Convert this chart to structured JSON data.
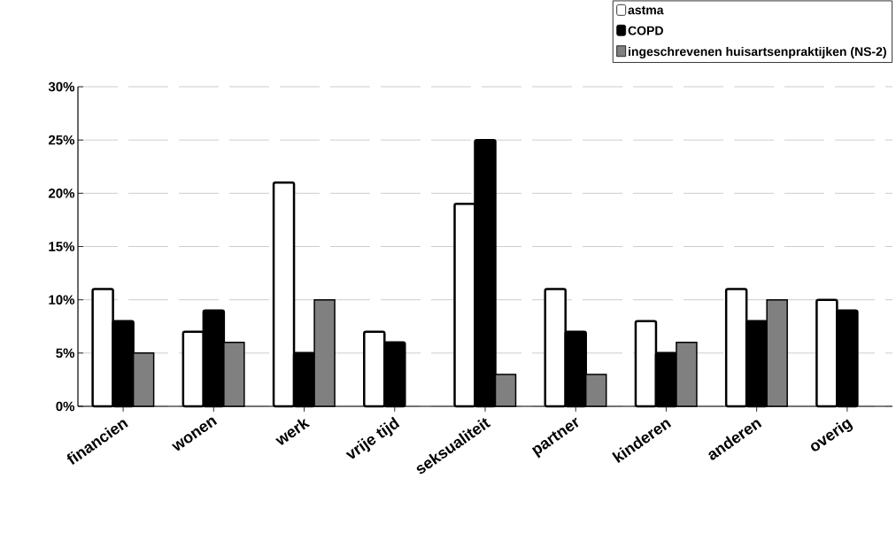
{
  "chart_data": {
    "type": "bar",
    "categories": [
      "financien",
      "wonen",
      "werk",
      "vrije tijd",
      "seksualiteit",
      "partner",
      "kinderen",
      "anderen",
      "overig"
    ],
    "series": [
      {
        "name": "astma",
        "color": "#ffffff",
        "values": [
          11,
          7,
          21,
          7,
          19,
          11,
          8,
          11,
          10
        ]
      },
      {
        "name": "COPD",
        "color": "#000000",
        "values": [
          8,
          9,
          5,
          6,
          25,
          7,
          5,
          8,
          9
        ]
      },
      {
        "name": "ingeschrevenen huisartsenpraktijken (NS-2)",
        "color": "#808080",
        "values": [
          5,
          6,
          10,
          null,
          3,
          3,
          6,
          10,
          null
        ]
      }
    ],
    "ylim": [
      0,
      30
    ],
    "yticks": [
      {
        "value": 0,
        "label": "0%"
      },
      {
        "value": 5,
        "label": "5%"
      },
      {
        "value": 10,
        "label": "10%"
      },
      {
        "value": 15,
        "label": "15%"
      },
      {
        "value": 20,
        "label": "20%"
      },
      {
        "value": 25,
        "label": "25%"
      },
      {
        "value": 30,
        "label": "30%"
      }
    ],
    "grid": "y",
    "legend": "top right"
  }
}
